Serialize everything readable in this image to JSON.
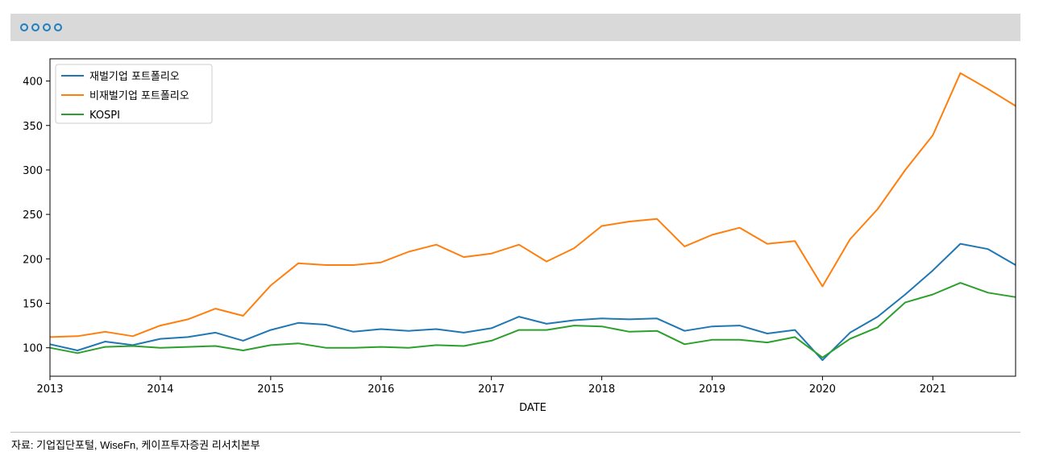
{
  "header": {
    "decoration_icons": [
      "circle-icon",
      "circle-icon",
      "circle-icon",
      "circle-icon"
    ],
    "accent_color": "#1e7fc0",
    "bar_color": "#d9d9d9"
  },
  "chart_data": {
    "type": "line",
    "title": "",
    "xlabel": "DATE",
    "ylabel": "",
    "xlim": [
      2013,
      2021.75
    ],
    "ylim": [
      68,
      425
    ],
    "x_ticks": [
      "2013",
      "2014",
      "2015",
      "2016",
      "2017",
      "2018",
      "2019",
      "2020",
      "2021"
    ],
    "y_ticks": [
      100,
      150,
      200,
      250,
      300,
      350,
      400
    ],
    "legend_position": "top-left",
    "grid": false,
    "x": [
      2013.0,
      2013.25,
      2013.5,
      2013.75,
      2014.0,
      2014.25,
      2014.5,
      2014.75,
      2015.0,
      2015.25,
      2015.5,
      2015.75,
      2016.0,
      2016.25,
      2016.5,
      2016.75,
      2017.0,
      2017.25,
      2017.5,
      2017.75,
      2018.0,
      2018.25,
      2018.5,
      2018.75,
      2019.0,
      2019.25,
      2019.5,
      2019.75,
      2020.0,
      2020.25,
      2020.5,
      2020.75,
      2021.0,
      2021.25,
      2021.5,
      2021.75
    ],
    "series": [
      {
        "name": "재벌기업 포트폴리오",
        "color": "#1f77b4",
        "values": [
          104,
          97,
          107,
          103,
          110,
          112,
          117,
          108,
          120,
          128,
          126,
          118,
          121,
          119,
          121,
          117,
          122,
          135,
          127,
          131,
          133,
          132,
          133,
          119,
          124,
          125,
          116,
          120,
          86,
          117,
          135,
          160,
          187,
          217,
          211,
          193
        ]
      },
      {
        "name": "비재벌기업 포트폴리오",
        "color": "#ff7f0e",
        "values": [
          112,
          113,
          118,
          113,
          125,
          132,
          144,
          136,
          170,
          195,
          193,
          193,
          196,
          208,
          216,
          202,
          206,
          216,
          197,
          212,
          237,
          242,
          245,
          214,
          227,
          235,
          217,
          220,
          169,
          222,
          256,
          300,
          339,
          409,
          391,
          372
        ]
      },
      {
        "name": "KOSPI",
        "color": "#2ca02c",
        "values": [
          100,
          94,
          101,
          102,
          100,
          101,
          102,
          97,
          103,
          105,
          100,
          100,
          101,
          100,
          103,
          102,
          108,
          120,
          120,
          125,
          124,
          118,
          119,
          104,
          109,
          109,
          106,
          112,
          89,
          110,
          123,
          151,
          160,
          173,
          162,
          157
        ]
      }
    ]
  },
  "footer": {
    "source": "자료: 기업집단포털, WiseFn, 케이프투자증권 리서치본부"
  }
}
